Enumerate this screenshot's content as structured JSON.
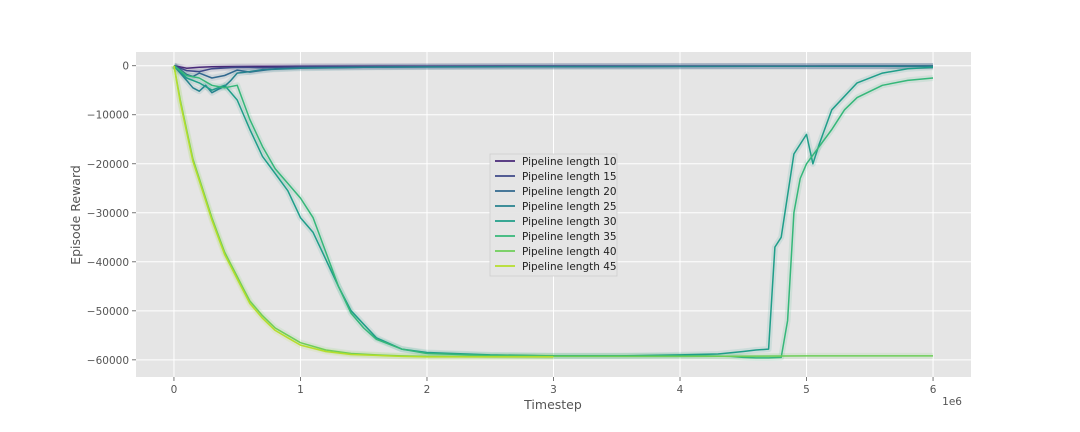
{
  "chart_data": {
    "type": "line",
    "title": "",
    "xlabel": "Timestep",
    "ylabel": "Episode Reward",
    "x_offset_label": "1e6",
    "xlim": [
      -0.3,
      6.3
    ],
    "ylim": [
      -63500,
      2800
    ],
    "x_ticks": [
      0,
      1,
      2,
      3,
      4,
      5,
      6
    ],
    "y_ticks": [
      0,
      -10000,
      -20000,
      -30000,
      -40000,
      -50000,
      -60000
    ],
    "x_tick_labels": [
      "0",
      "1",
      "2",
      "3",
      "4",
      "5",
      "6"
    ],
    "y_tick_labels": [
      "0",
      "−10000",
      "−20000",
      "−30000",
      "−40000",
      "−50000",
      "−60000"
    ],
    "grid": true,
    "legend_position": "center",
    "series": [
      {
        "name": "Pipeline length 10",
        "color": "#482878",
        "x": [
          0,
          0.1,
          0.2,
          0.3,
          0.5,
          1,
          2,
          3,
          4,
          5,
          6
        ],
        "y": [
          0,
          -500,
          -300,
          -200,
          -150,
          -100,
          -80,
          -60,
          -60,
          -50,
          -50
        ]
      },
      {
        "name": "Pipeline length 15",
        "color": "#3e4989",
        "x": [
          0,
          0.1,
          0.2,
          0.3,
          0.5,
          0.7,
          1,
          2,
          3,
          4,
          5,
          6
        ],
        "y": [
          0,
          -1000,
          -1200,
          -600,
          -300,
          -400,
          -200,
          -150,
          -120,
          -100,
          -100,
          -80
        ]
      },
      {
        "name": "Pipeline length 20",
        "color": "#31688e",
        "x": [
          0,
          0.05,
          0.1,
          0.15,
          0.2,
          0.3,
          0.4,
          0.5,
          0.6,
          0.8,
          1,
          1.5,
          2,
          3,
          4,
          5,
          6
        ],
        "y": [
          0,
          -800,
          -1800,
          -2200,
          -1500,
          -2500,
          -2000,
          -900,
          -1300,
          -600,
          -400,
          -300,
          -200,
          -150,
          -120,
          -100,
          -100
        ]
      },
      {
        "name": "Pipeline length 25",
        "color": "#26828e",
        "x": [
          0,
          0.05,
          0.1,
          0.15,
          0.2,
          0.25,
          0.3,
          0.35,
          0.4,
          0.45,
          0.5,
          0.6,
          0.7,
          0.8,
          1,
          1.5,
          2,
          3,
          4,
          5,
          6
        ],
        "y": [
          0,
          -1500,
          -3000,
          -4500,
          -5200,
          -4000,
          -5500,
          -4800,
          -4200,
          -3000,
          -1500,
          -1200,
          -800,
          -700,
          -500,
          -300,
          -250,
          -200,
          -150,
          -100,
          -80
        ]
      },
      {
        "name": "Pipeline length 30",
        "color": "#1f9e89",
        "x": [
          0,
          0.1,
          0.2,
          0.3,
          0.4,
          0.5,
          0.6,
          0.7,
          0.8,
          0.9,
          1.0,
          1.1,
          1.2,
          1.3,
          1.4,
          1.6,
          1.8,
          2.0,
          2.5,
          3.0,
          3.5,
          4.0,
          4.3,
          4.5,
          4.6,
          4.7,
          4.75,
          4.8,
          4.9,
          5.0,
          5.05,
          5.1,
          5.2,
          5.4,
          5.6,
          5.8,
          6.0
        ],
        "y": [
          0,
          -2500,
          -3500,
          -5000,
          -4000,
          -7000,
          -13000,
          -18500,
          -22000,
          -25500,
          -31000,
          -34000,
          -39500,
          -45000,
          -50000,
          -55500,
          -57800,
          -58500,
          -59000,
          -59200,
          -59200,
          -59000,
          -58800,
          -58300,
          -58000,
          -57800,
          -37000,
          -35000,
          -18000,
          -14000,
          -20000,
          -16000,
          -9000,
          -3500,
          -1500,
          -600,
          -300
        ]
      },
      {
        "name": "Pipeline length 35",
        "color": "#35b779",
        "x": [
          0,
          0.1,
          0.2,
          0.3,
          0.4,
          0.5,
          0.6,
          0.7,
          0.8,
          0.9,
          1.0,
          1.1,
          1.2,
          1.3,
          1.4,
          1.5,
          1.6,
          1.8,
          2.0,
          2.5,
          3.0,
          3.5,
          4.0,
          4.2,
          4.4,
          4.5,
          4.6,
          4.7,
          4.8,
          4.85,
          4.9,
          4.95,
          5.0,
          5.1,
          5.2,
          5.3,
          5.4,
          5.6,
          5.8,
          6.0
        ],
        "y": [
          0,
          -2000,
          -2500,
          -4000,
          -4500,
          -4000,
          -11000,
          -16500,
          -21000,
          -24000,
          -27000,
          -31000,
          -38000,
          -45000,
          -50500,
          -53500,
          -55800,
          -57800,
          -58700,
          -59100,
          -59200,
          -59200,
          -59200,
          -59200,
          -59300,
          -59500,
          -59600,
          -59600,
          -59500,
          -52000,
          -30000,
          -23000,
          -20000,
          -16500,
          -13000,
          -9000,
          -6500,
          -4000,
          -3000,
          -2500
        ]
      },
      {
        "name": "Pipeline length 40",
        "color": "#6ece58",
        "x": [
          0,
          0.05,
          0.1,
          0.15,
          0.2,
          0.25,
          0.3,
          0.35,
          0.4,
          0.45,
          0.5,
          0.55,
          0.6,
          0.7,
          0.8,
          0.9,
          1.0,
          1.2,
          1.4,
          1.6,
          1.8,
          2.0,
          2.5,
          3.0,
          4.0,
          5.0,
          6.0
        ],
        "y": [
          0,
          -7000,
          -13000,
          -19000,
          -23000,
          -27000,
          -31000,
          -34500,
          -38000,
          -40500,
          -43000,
          -45500,
          -48000,
          -51000,
          -53500,
          -55000,
          -56500,
          -58000,
          -58700,
          -59000,
          -59200,
          -59300,
          -59300,
          -59300,
          -59300,
          -59200,
          -59200
        ]
      },
      {
        "name": "Pipeline length 45",
        "color": "#b5de2b",
        "x": [
          0,
          0.05,
          0.1,
          0.15,
          0.2,
          0.25,
          0.3,
          0.35,
          0.4,
          0.45,
          0.5,
          0.55,
          0.6,
          0.7,
          0.8,
          0.9,
          1.0,
          1.2,
          1.4,
          1.6,
          1.8,
          2.0,
          2.5,
          3.0
        ],
        "y": [
          0,
          -7500,
          -13500,
          -19500,
          -23500,
          -27500,
          -31500,
          -35000,
          -38500,
          -41000,
          -43500,
          -46000,
          -48500,
          -51500,
          -54000,
          -55500,
          -57000,
          -58300,
          -58900,
          -59100,
          -59300,
          -59400,
          -59400,
          -59400
        ]
      }
    ]
  }
}
